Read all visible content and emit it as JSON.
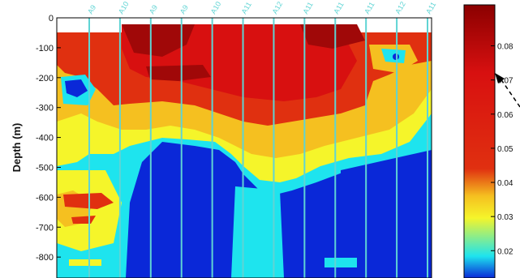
{
  "chart_data": {
    "type": "heatmap",
    "title": "",
    "xlabel": "",
    "ylabel": "Depth (m)",
    "y_ticks": [
      0,
      -100,
      -200,
      -300,
      -400,
      -500,
      -600,
      -700,
      -800
    ],
    "ylim": [
      -870,
      0
    ],
    "stations": [
      "A9",
      "A10",
      "A9",
      "A9",
      "A10",
      "A11",
      "A12",
      "A11",
      "A11",
      "A11",
      "A12",
      "A11"
    ],
    "colorbar": {
      "ticks": [
        "0.02",
        "0.03",
        "0.04",
        "0.05",
        "0.06",
        "0.07",
        "0.08"
      ],
      "tick_values": [
        0.02,
        0.03,
        0.04,
        0.05,
        0.06,
        0.07,
        0.08
      ],
      "range": [
        0.012,
        0.092
      ],
      "colors": [
        "#0a28d8",
        "#1ee4ee",
        "#f5f52a",
        "#f5c020",
        "#e03010",
        "#d81010",
        "#8b0000"
      ]
    },
    "grid": false,
    "annotation": "dashed-arrow-to-colorbar"
  }
}
